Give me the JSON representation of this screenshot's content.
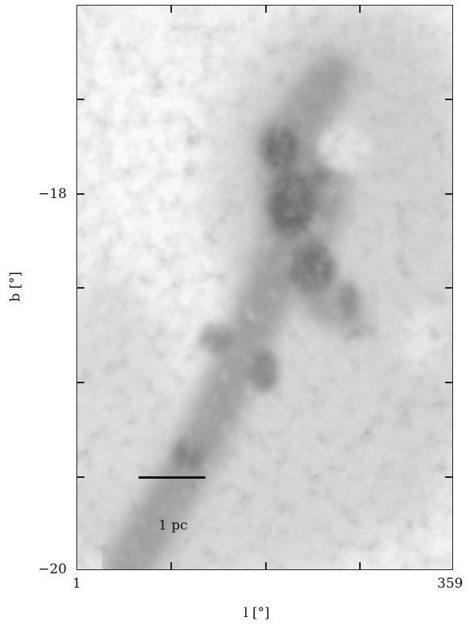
{
  "figure": {
    "y_axis": {
      "label": "b [°]",
      "tick_labels": [
        "−18",
        "−20"
      ]
    },
    "x_axis": {
      "label": "l [°]",
      "tick_labels": [
        "1",
        "359"
      ]
    },
    "scale_bar": {
      "label": "1 pc"
    },
    "image": {
      "colormap": "grayscale",
      "content": "cloud-intensity-map"
    }
  }
}
